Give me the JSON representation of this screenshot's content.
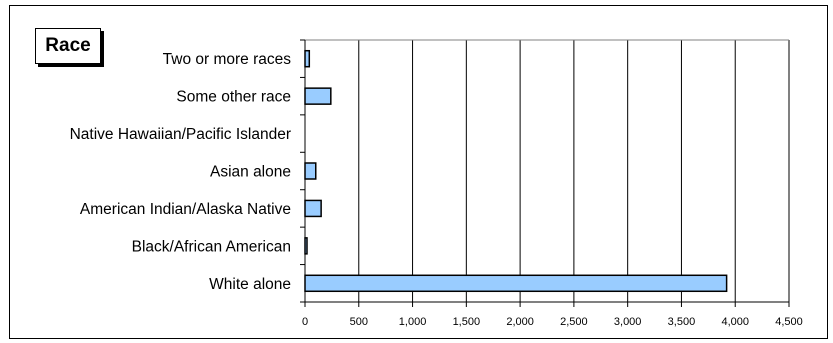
{
  "chart_data": {
    "type": "bar",
    "orientation": "horizontal",
    "title": "Race",
    "categories": [
      "White alone",
      "Black/African American",
      "American Indian/Alaska Native",
      "Asian alone",
      "Native Hawaiian/Pacific Islander",
      "Some other race",
      "Two or more races"
    ],
    "values": [
      3920,
      10,
      150,
      100,
      0,
      240,
      40
    ],
    "xlim": [
      0,
      4500
    ],
    "xticks": [
      0,
      500,
      1000,
      1500,
      2000,
      2500,
      3000,
      3500,
      4000,
      4500
    ],
    "xtick_labels": [
      "0",
      "500",
      "1,000",
      "1,500",
      "2,000",
      "2,500",
      "3,000",
      "3,500",
      "4,000",
      "4,500"
    ],
    "bar_color": "#99ccff",
    "bar_edge_color": "#000000",
    "grid": "vertical"
  }
}
